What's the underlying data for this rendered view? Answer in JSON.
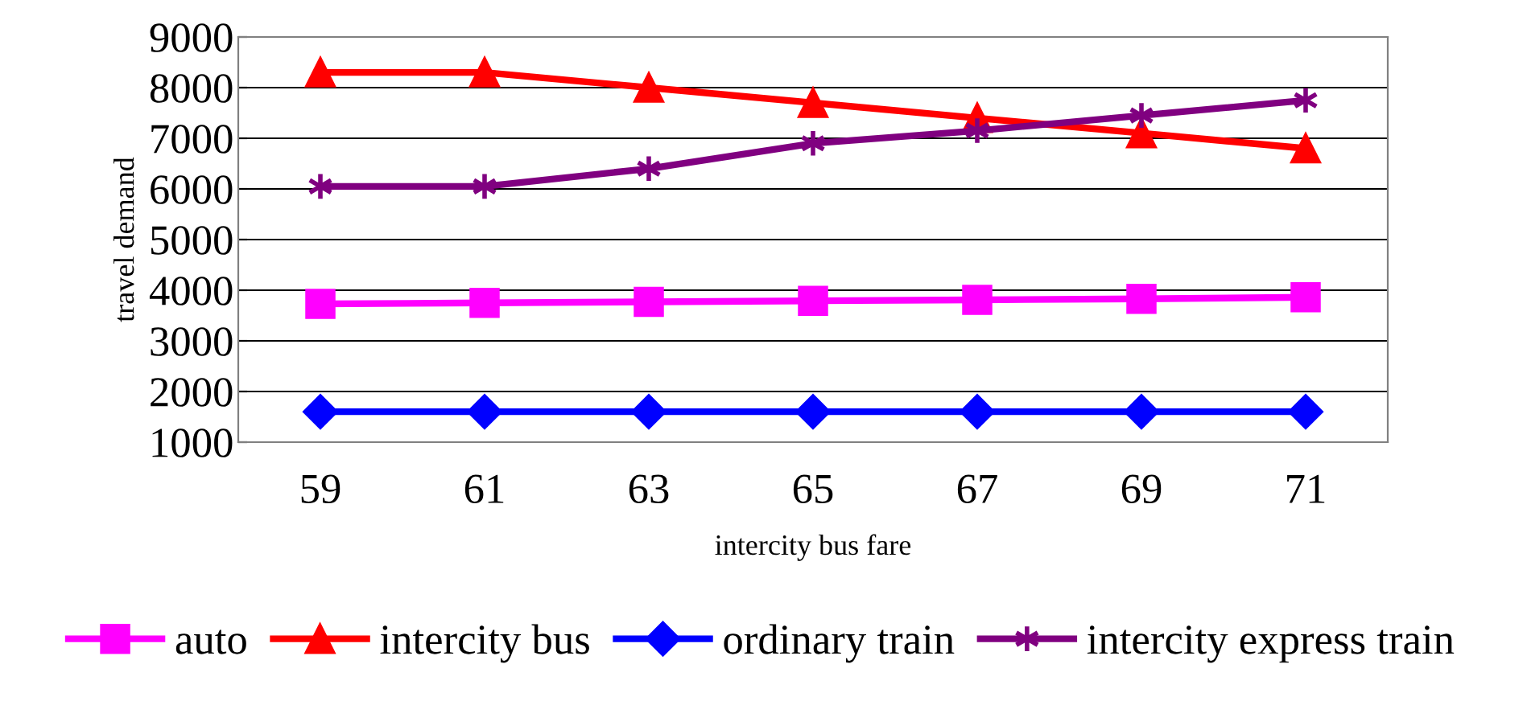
{
  "chart_data": {
    "type": "line",
    "xlabel": "intercity bus fare",
    "ylabel": "travel demand",
    "categories": [
      "59",
      "61",
      "63",
      "65",
      "67",
      "69",
      "71"
    ],
    "ylim": [
      1000,
      9000
    ],
    "yticks": [
      1000,
      2000,
      3000,
      4000,
      5000,
      6000,
      7000,
      8000,
      9000
    ],
    "grid": "y",
    "legend": "bottom",
    "line_style": "solid",
    "series": [
      {
        "name": "auto",
        "color": "#ff00ff",
        "marker": "square",
        "values": [
          3730,
          3750,
          3770,
          3790,
          3810,
          3830,
          3860
        ]
      },
      {
        "name": "intercity bus",
        "color": "#ff0000",
        "marker": "triangle",
        "values": [
          8300,
          8300,
          8000,
          7700,
          7400,
          7100,
          6800
        ]
      },
      {
        "name": "ordinary train",
        "color": "#0000ff",
        "marker": "diamond",
        "values": [
          1600,
          1600,
          1600,
          1600,
          1600,
          1600,
          1600
        ]
      },
      {
        "name": "intercity express train",
        "color": "#800080",
        "marker": "cross",
        "values": [
          6050,
          6050,
          6400,
          6900,
          7150,
          7450,
          7750
        ]
      }
    ]
  }
}
